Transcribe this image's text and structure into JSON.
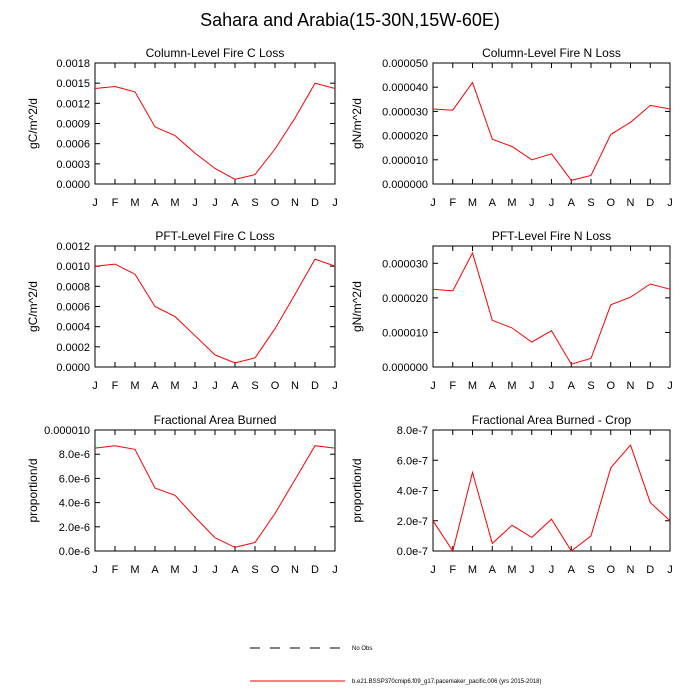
{
  "title": "Sahara and Arabia(15-30N,15W-60E)",
  "months": [
    "J",
    "F",
    "M",
    "A",
    "M",
    "J",
    "J",
    "A",
    "S",
    "O",
    "N",
    "D",
    "J"
  ],
  "colors": {
    "model": "#ff0000",
    "axis": "#000000",
    "obs": "#000000"
  },
  "legend": [
    {
      "label": "No Obs",
      "style": "dashed"
    },
    {
      "label": "b.e21.BSSP370cmip6.f09_g17.pacemaker_pacific.006 (yrs 2015-2018)",
      "style": "solid"
    }
  ],
  "chart_data": [
    {
      "type": "line",
      "title": "Column-Level Fire C Loss",
      "ylabel": "gC/m^2/d",
      "ylim": [
        0,
        0.0018
      ],
      "yticks": [
        "0.0000",
        "0.0003",
        "0.0006",
        "0.0009",
        "0.0012",
        "0.0015",
        "0.0018"
      ],
      "values": [
        0.00142,
        0.00145,
        0.00137,
        0.00085,
        0.00072,
        0.00046,
        0.00023,
        7e-05,
        0.00014,
        0.00052,
        0.00098,
        0.0015,
        0.00142
      ]
    },
    {
      "type": "line",
      "title": "Column-Level Fire N Loss",
      "ylabel": "gN/m^2/d",
      "ylim": [
        0,
        5e-05
      ],
      "yticks": [
        "0.000000",
        "0.000010",
        "0.000020",
        "0.000030",
        "0.000040",
        "0.000050"
      ],
      "values": [
        3.1e-05,
        3.05e-05,
        4.2e-05,
        1.85e-05,
        1.55e-05,
        1e-05,
        1.25e-05,
        1.5e-06,
        3.5e-06,
        2.05e-05,
        2.55e-05,
        3.25e-05,
        3.1e-05
      ]
    },
    {
      "type": "line",
      "title": "PFT-Level Fire C Loss",
      "ylabel": "gC/m^2/d",
      "ylim": [
        0,
        0.0012
      ],
      "yticks": [
        "0.0000",
        "0.0002",
        "0.0004",
        "0.0006",
        "0.0008",
        "0.0010",
        "0.0012"
      ],
      "values": [
        0.001,
        0.00102,
        0.00092,
        0.0006,
        0.0005,
        0.00031,
        0.00012,
        4e-05,
        9e-05,
        0.00038,
        0.00072,
        0.00107,
        0.001
      ]
    },
    {
      "type": "line",
      "title": "PFT-Level Fire N Loss",
      "ylabel": "gN/m^2/d",
      "ylim": [
        0,
        3.5e-05
      ],
      "yticks": [
        "0.000000",
        "0.000010",
        "0.000020",
        "0.000030"
      ],
      "ytick_values": [
        0,
        1e-05,
        2e-05,
        3e-05
      ],
      "values": [
        2.25e-05,
        2.2e-05,
        3.3e-05,
        1.35e-05,
        1.13e-05,
        7.2e-06,
        1.05e-05,
        8e-07,
        2.5e-06,
        1.8e-05,
        2.02e-05,
        2.4e-05,
        2.25e-05
      ]
    },
    {
      "type": "line",
      "title": "Fractional Area Burned",
      "ylabel": "proportion/d",
      "ylim": [
        0,
        1e-05
      ],
      "yticks": [
        "0.0e-6",
        "2.0e-6",
        "4.0e-6",
        "6.0e-6",
        "8.0e-6",
        "0.000010"
      ],
      "values": [
        8.5e-06,
        8.7e-06,
        8.4e-06,
        5.2e-06,
        4.6e-06,
        2.8e-06,
        1.1e-06,
        3e-07,
        7e-07,
        3.1e-06,
        5.9e-06,
        8.7e-06,
        8.5e-06
      ]
    },
    {
      "type": "line",
      "title": "Fractional Area Burned - Crop",
      "ylabel": "proportion/d",
      "ylim": [
        0,
        8e-07
      ],
      "yticks": [
        "0.0e-7",
        "2.0e-7",
        "4.0e-7",
        "6.0e-7",
        "8.0e-7"
      ],
      "values": [
        2e-07,
        0.0,
        5.2e-07,
        5e-08,
        1.7e-07,
        9e-08,
        2.1e-07,
        0.0,
        1e-07,
        5.5e-07,
        7e-07,
        3.2e-07,
        2e-07
      ]
    }
  ]
}
